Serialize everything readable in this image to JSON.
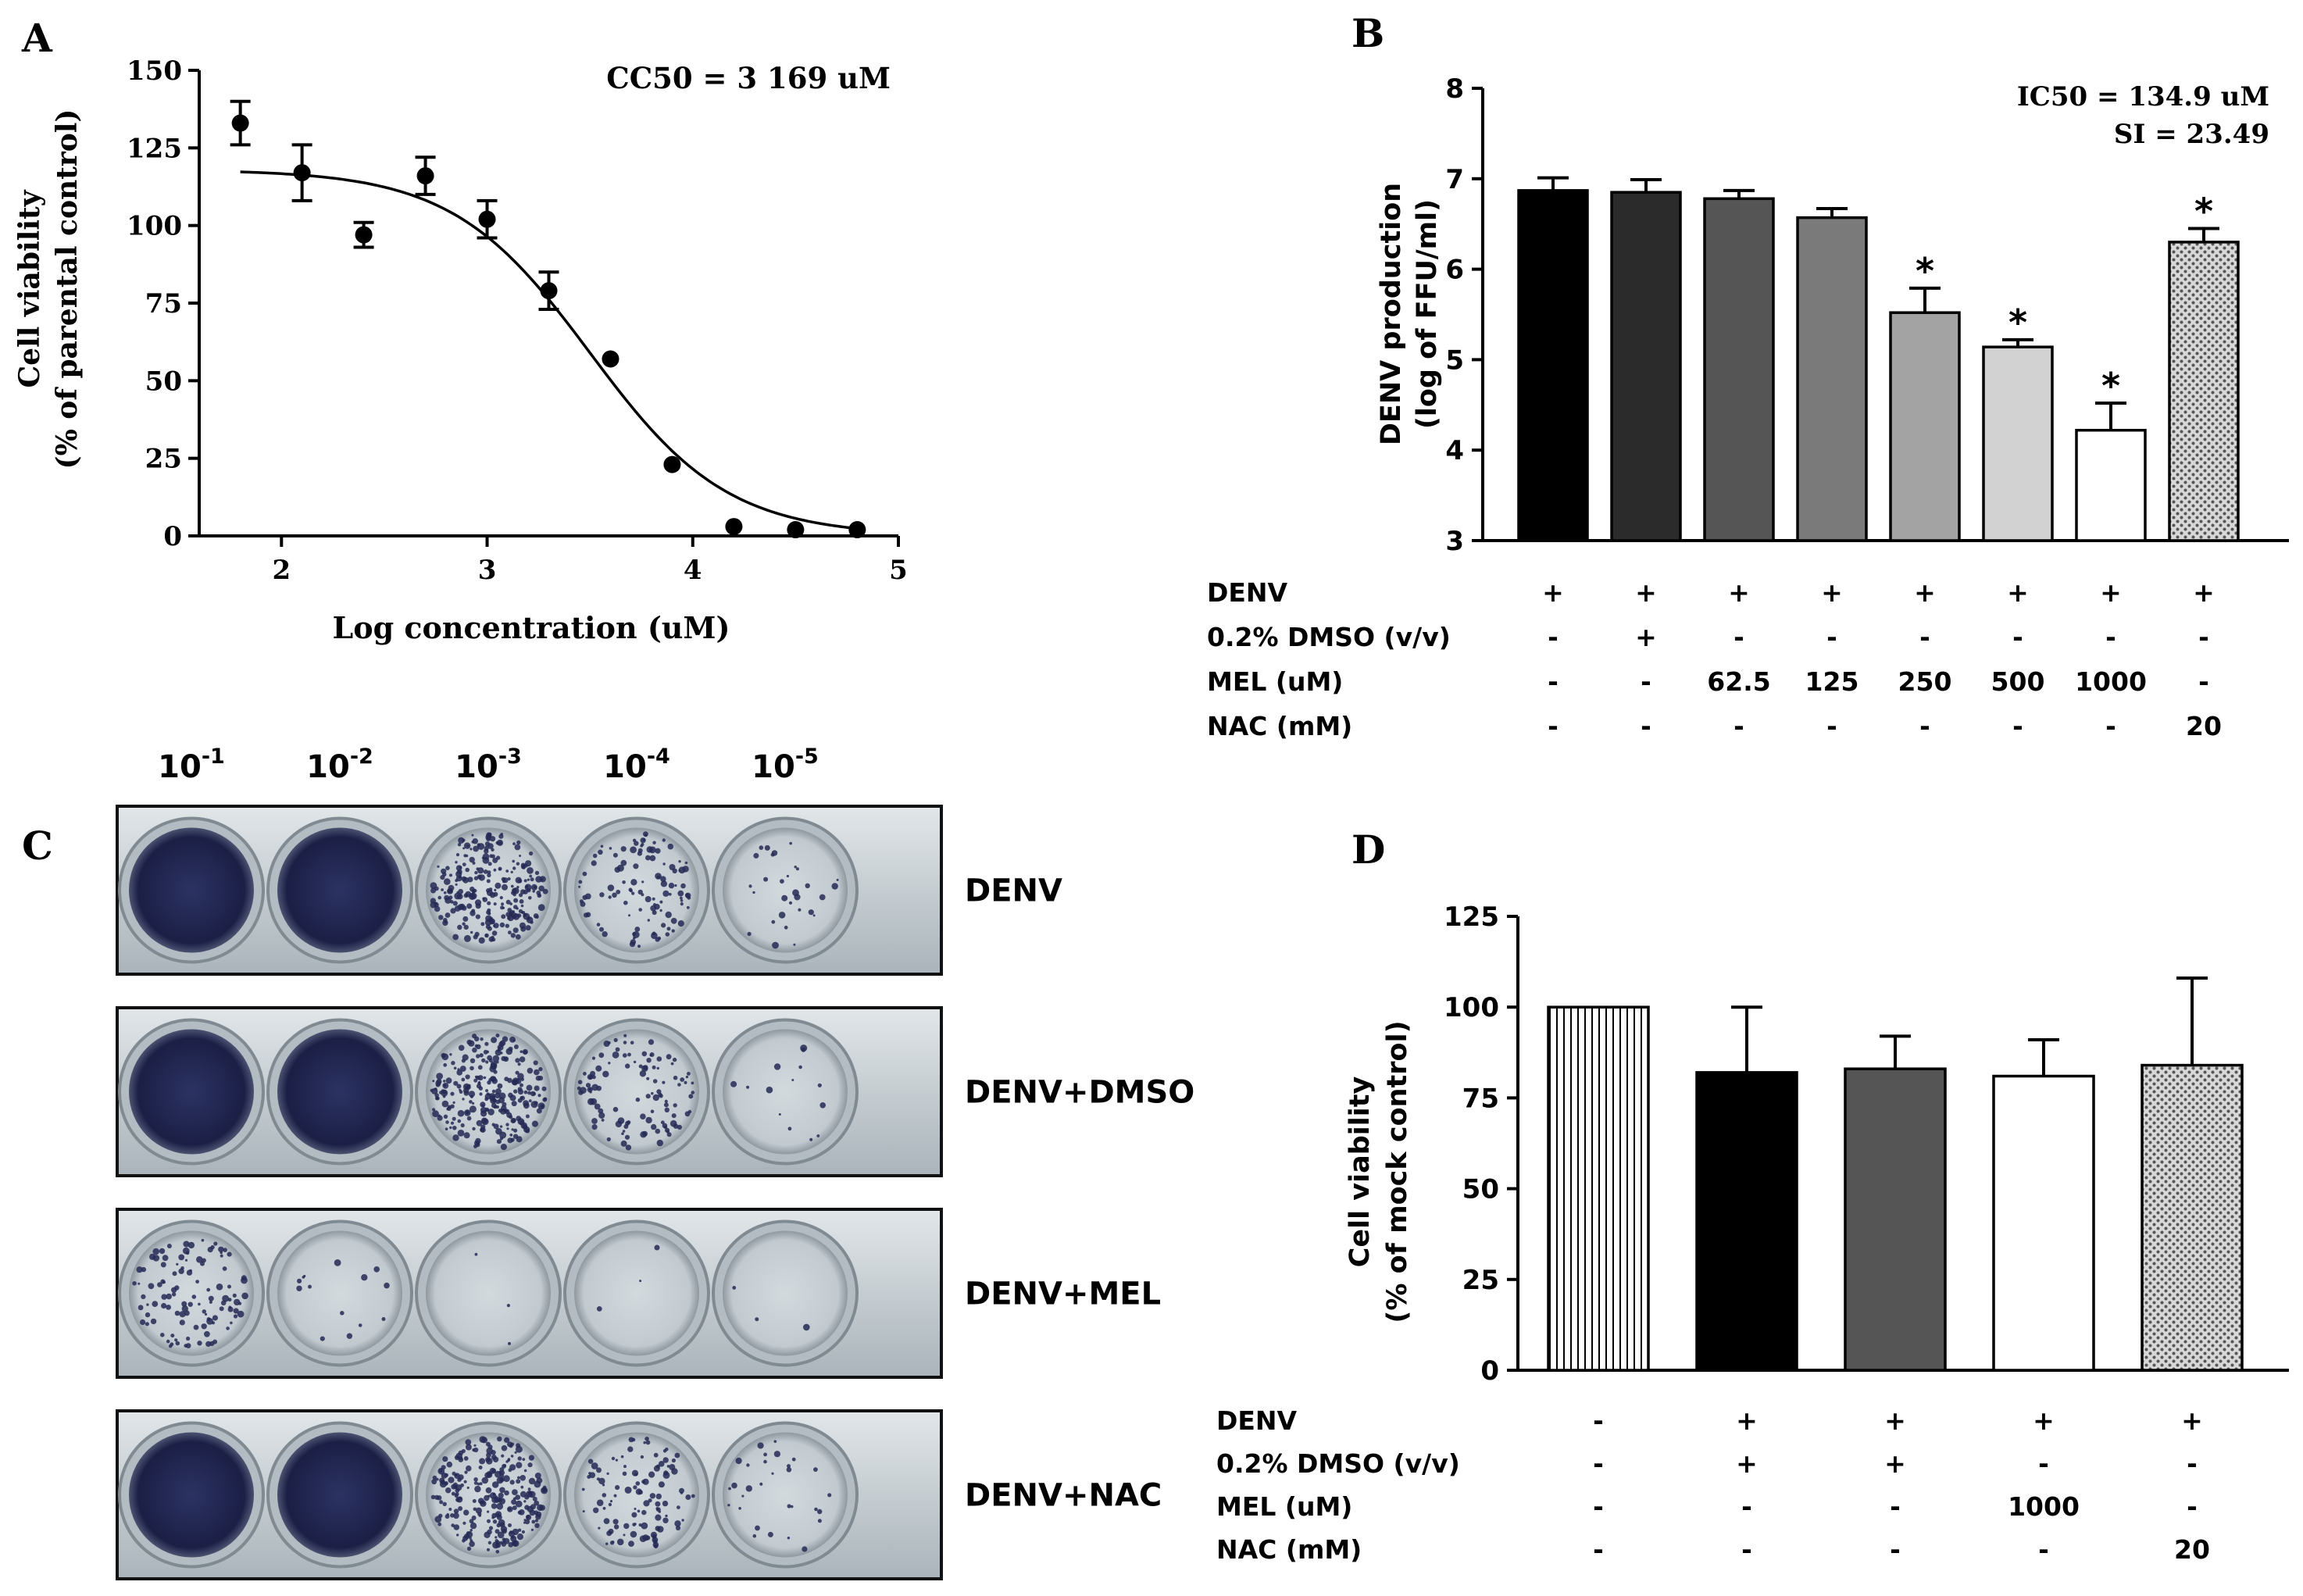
{
  "colors": {
    "ink": "#000000",
    "plate": "#c3ccd2",
    "rim": "#9aa4ab"
  },
  "panels": {
    "A": {
      "letter": "A",
      "annotation": "CC50 = 3 169 uM"
    },
    "B": {
      "letter": "B",
      "annotation_line1": "IC50 = 134.9 uM",
      "annotation_line2": "SI = 23.49",
      "star": "*"
    },
    "C": {
      "letter": "C"
    },
    "D": {
      "letter": "D"
    }
  },
  "chart_data": [
    {
      "id": "A",
      "type": "scatter",
      "title": "",
      "xlabel": "Log concentration (uM)",
      "ylabel_line1": "Cell viability",
      "ylabel_line2": "(% of parental control)",
      "xlim": [
        1.6,
        5.0
      ],
      "ylim": [
        0,
        150
      ],
      "xticks": [
        2,
        3,
        4,
        5
      ],
      "yticks": [
        0,
        25,
        50,
        75,
        100,
        125,
        150
      ],
      "x": [
        1.8,
        2.1,
        2.4,
        2.7,
        3.0,
        3.3,
        3.6,
        3.9,
        4.2,
        4.5,
        4.8
      ],
      "y": [
        133,
        117,
        97,
        116,
        102,
        79,
        57,
        23,
        3,
        2,
        2
      ],
      "err": [
        7,
        9,
        4,
        6,
        6,
        6,
        0,
        0,
        0,
        0,
        0
      ],
      "fit": {
        "top": 118,
        "bottom": 0,
        "logEC50": 3.5,
        "hill": -1.3
      }
    },
    {
      "id": "B",
      "type": "bar",
      "ylabel_line1": "DENV production",
      "ylabel_line2": "(log of  FFU/ml)",
      "ylim": [
        3,
        8
      ],
      "yticks": [
        3,
        4,
        5,
        6,
        7,
        8
      ],
      "values": [
        6.87,
        6.85,
        6.78,
        6.57,
        5.52,
        5.14,
        4.22,
        6.3
      ],
      "err": [
        0.14,
        0.14,
        0.09,
        0.1,
        0.27,
        0.08,
        0.3,
        0.15
      ],
      "significant": [
        false,
        false,
        false,
        false,
        true,
        true,
        true,
        true
      ],
      "fills": [
        "black",
        "dark1",
        "dark2",
        "mid",
        "gray",
        "light",
        "white",
        "dots"
      ],
      "row_labels": [
        "DENV",
        "0.2% DMSO (v/v)",
        "MEL (uM)",
        "NAC (mM)"
      ],
      "rows": [
        [
          "+",
          "+",
          "+",
          "+",
          "+",
          "+",
          "+",
          "+"
        ],
        [
          "-",
          "+",
          "-",
          "-",
          "-",
          "-",
          "-",
          "-"
        ],
        [
          "-",
          "-",
          "62.5",
          "125",
          "250",
          "500",
          "1000",
          "-"
        ],
        [
          "-",
          "-",
          "-",
          "-",
          "-",
          "-",
          "-",
          "20"
        ]
      ]
    },
    {
      "id": "D",
      "type": "bar",
      "ylabel_line1": "Cell viability",
      "ylabel_line2": "(% of mock control)",
      "ylim": [
        0,
        125
      ],
      "yticks": [
        0,
        25,
        50,
        75,
        100,
        125
      ],
      "values": [
        100,
        82,
        83,
        81,
        84
      ],
      "err": [
        0,
        18,
        9,
        10,
        24
      ],
      "fills": [
        "vlines",
        "black",
        "dark2",
        "white",
        "dots"
      ],
      "row_labels": [
        "DENV",
        "0.2% DMSO (v/v)",
        "MEL (uM)",
        "NAC (mM)"
      ],
      "rows": [
        [
          "-",
          "+",
          "+",
          "+",
          "+"
        ],
        [
          "-",
          "+",
          "+",
          "-",
          "-"
        ],
        [
          "-",
          "-",
          "-",
          "1000",
          "-"
        ],
        [
          "-",
          "-",
          "-",
          "-",
          "20"
        ]
      ]
    }
  ],
  "plate_panel": {
    "dilutions": [
      {
        "base": "10",
        "exp": "-1"
      },
      {
        "base": "10",
        "exp": "-2"
      },
      {
        "base": "10",
        "exp": "-3"
      },
      {
        "base": "10",
        "exp": "-4"
      },
      {
        "base": "10",
        "exp": "-5"
      }
    ],
    "rows": [
      {
        "label": "DENV",
        "wells": [
          "solid",
          "solid",
          "heavy",
          "medium",
          "light"
        ]
      },
      {
        "label": "DENV+DMSO",
        "wells": [
          "solid",
          "solid",
          "heavy",
          "medium",
          "sparse"
        ]
      },
      {
        "label": "DENV+MEL",
        "wells": [
          "medium",
          "sparse",
          "clear",
          "clear",
          "clear"
        ]
      },
      {
        "label": "DENV+NAC",
        "wells": [
          "solid",
          "solid",
          "heavy",
          "medium",
          "light"
        ]
      }
    ]
  }
}
